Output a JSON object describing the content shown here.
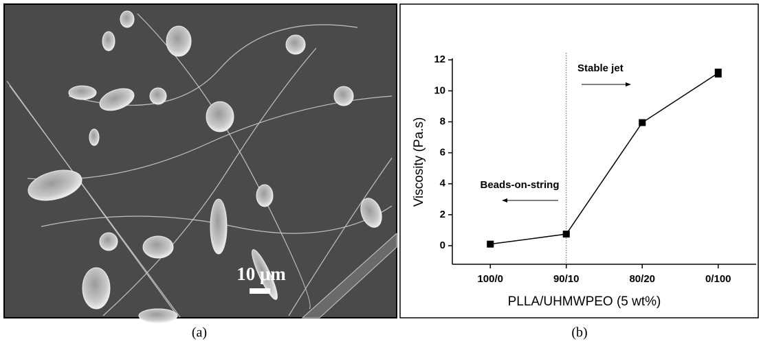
{
  "figure": {
    "captions": [
      "(a)",
      "(b)"
    ],
    "scale_bar_label": "10 μm"
  },
  "chart_data": {
    "type": "line",
    "xlabel": "PLLA/UHMWPEO (5 wt%)",
    "ylabel": "Viscosity (Pa.s)",
    "categories": [
      "100/0",
      "90/10",
      "80/20",
      "0/100"
    ],
    "values": [
      0.1,
      0.75,
      7.95,
      11.15
    ],
    "errors": [
      0.05,
      0.05,
      0.1,
      0.25
    ],
    "color": "#000000",
    "ylim": [
      -1.2,
      12.1
    ],
    "yticks": [
      0,
      2,
      4,
      6,
      8,
      10,
      12
    ],
    "annotations": [
      "Stable jet",
      "Beads-on-string"
    ]
  }
}
